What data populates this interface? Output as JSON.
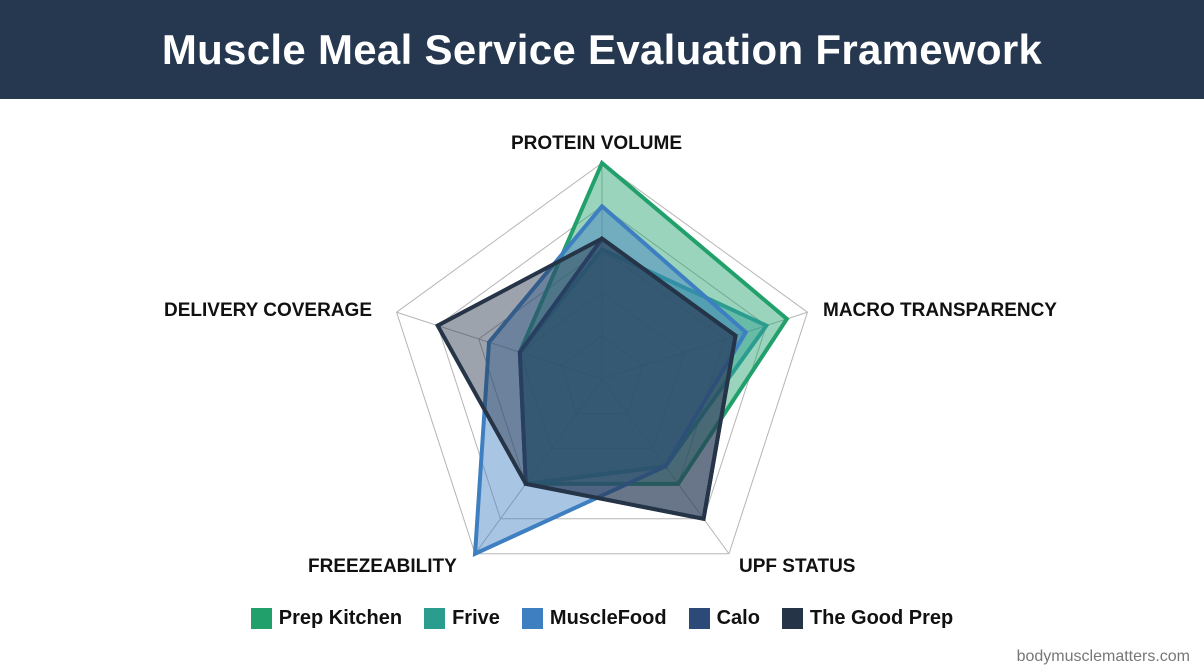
{
  "header": {
    "title": "Muscle Meal Service Evaluation Framework"
  },
  "watermark": "bodymusclematters.com",
  "axes": [
    "PROTEIN VOLUME",
    "MACRO TRANSPARENCY",
    "UPF STATUS",
    "FREEZEABILITY",
    "DELIVERY COVERAGE"
  ],
  "legend": [
    {
      "label": "Prep Kitchen",
      "color": "#22a06b"
    },
    {
      "label": "Frive",
      "color": "#2a9d8f"
    },
    {
      "label": "MuscleFood",
      "color": "#3d7fc1"
    },
    {
      "label": "Calo",
      "color": "#2c4a78"
    },
    {
      "label": "The Good Prep",
      "color": "#253447"
    }
  ],
  "chart_data": {
    "type": "radar",
    "title": "Muscle Meal Service Evaluation Framework",
    "categories": [
      "Protein Volume",
      "Macro Transparency",
      "UPF Status",
      "Freezeability",
      "Delivery Coverage"
    ],
    "range": [
      0,
      10
    ],
    "grid_rings": 5,
    "legend_position": "bottom",
    "series": [
      {
        "name": "Prep Kitchen",
        "color": "#22a06b",
        "values": [
          10,
          9,
          6,
          6,
          4
        ]
      },
      {
        "name": "Frive",
        "color": "#2a9d8f",
        "values": [
          6,
          8,
          5,
          6,
          4
        ]
      },
      {
        "name": "MuscleFood",
        "color": "#3d7fc1",
        "values": [
          8,
          7,
          5,
          10,
          5.5
        ]
      },
      {
        "name": "Calo",
        "color": "#2c4a78",
        "values": [
          6.5,
          6.5,
          8,
          6,
          4
        ]
      },
      {
        "name": "The Good Prep",
        "color": "#253447",
        "values": [
          6.5,
          6.5,
          8,
          6,
          8
        ]
      }
    ]
  }
}
